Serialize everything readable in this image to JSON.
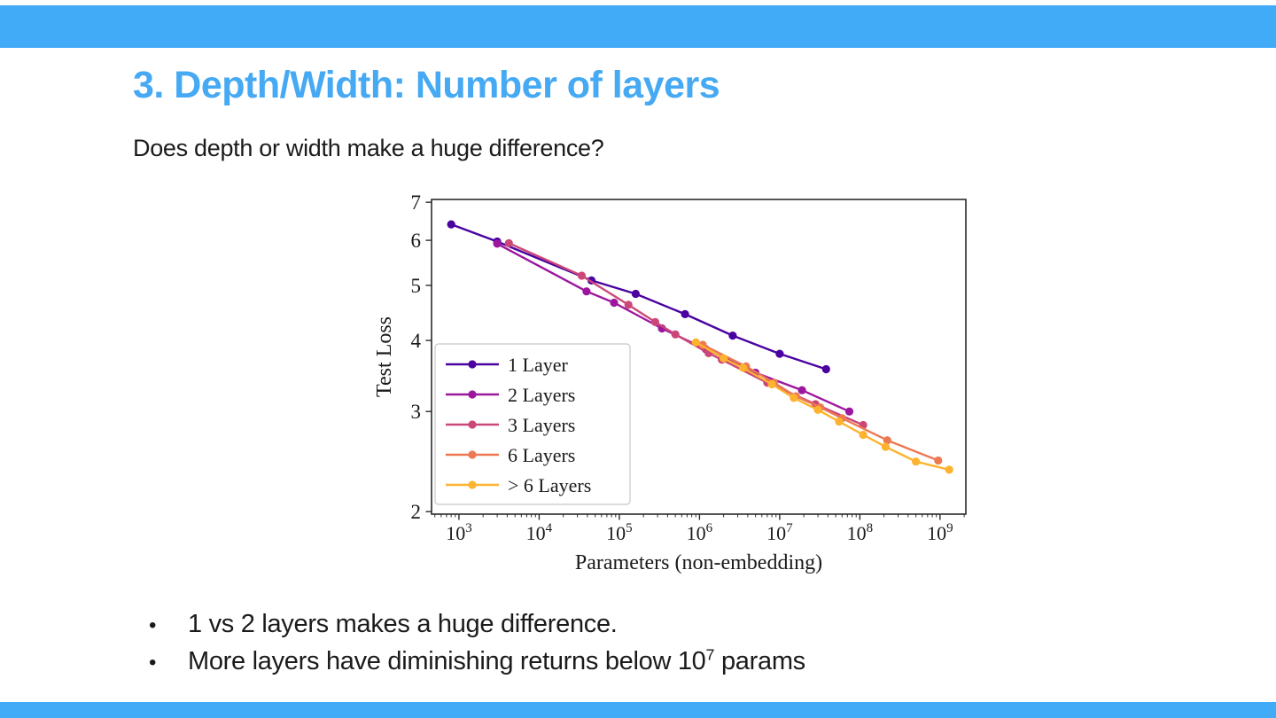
{
  "slide": {
    "accent_color": "#41abf8",
    "title": "3. Depth/Width: Number of layers",
    "title_color": "#45a9f3",
    "subtitle": "Does depth or width make a huge difference?",
    "bullet_glyph": "•",
    "bullets": [
      [
        {
          "t": "1 vs 2 layers makes a huge difference."
        }
      ],
      [
        {
          "t": "More layers have diminishing returns below 10"
        },
        {
          "t": "7",
          "sup": true
        },
        {
          "t": " params"
        }
      ]
    ]
  },
  "chart_data": {
    "type": "line",
    "title": "",
    "xlabel": "Parameters (non-embedding)",
    "ylabel": "Test Loss",
    "x_scale": "log",
    "y_scale": "log",
    "xlim": [
      455,
      2100000000
    ],
    "ylim": [
      1.98,
      7.08
    ],
    "x_tick_exponents": [
      3,
      4,
      5,
      6,
      7,
      8,
      9
    ],
    "y_ticks": [
      2,
      3,
      4,
      5,
      6,
      7
    ],
    "grid": false,
    "legend": {
      "position": "inside-lower-left",
      "entries": [
        "1 Layer",
        "2 Layers",
        "3 Layers",
        "6 Layers",
        "> 6 Layers"
      ]
    },
    "series": [
      {
        "name": "1 Layer",
        "color": "#4a03a0",
        "points": [
          [
            800,
            6.4
          ],
          [
            3000,
            5.97
          ],
          [
            45000,
            5.1
          ],
          [
            160000,
            4.83
          ],
          [
            660000,
            4.45
          ],
          [
            2600000,
            4.08
          ],
          [
            10000000,
            3.79
          ],
          [
            38000000,
            3.56
          ]
        ]
      },
      {
        "name": "2 Layers",
        "color": "#9c179e",
        "points": [
          [
            3000,
            5.92
          ],
          [
            39000,
            4.88
          ],
          [
            86000,
            4.66
          ],
          [
            340000,
            4.2
          ],
          [
            1200000,
            3.86
          ],
          [
            5000000,
            3.51
          ],
          [
            19000000,
            3.27
          ],
          [
            74000000,
            3.0
          ]
        ]
      },
      {
        "name": "3 Layers",
        "color": "#cc4778",
        "points": [
          [
            4200,
            5.93
          ],
          [
            34000,
            5.2
          ],
          [
            130000,
            4.62
          ],
          [
            280000,
            4.31
          ],
          [
            500000,
            4.1
          ],
          [
            1300000,
            3.8
          ],
          [
            1900000,
            3.7
          ],
          [
            7000000,
            3.37
          ],
          [
            28000000,
            3.09
          ],
          [
            110000000,
            2.84
          ]
        ]
      },
      {
        "name": "6 Layers",
        "color": "#ed7953",
        "points": [
          [
            1100000,
            3.93
          ],
          [
            3800000,
            3.6
          ],
          [
            8500000,
            3.37
          ],
          [
            16000000,
            3.19
          ],
          [
            32000000,
            3.05
          ],
          [
            60000000,
            2.92
          ],
          [
            220000000,
            2.67
          ],
          [
            950000000,
            2.46
          ]
        ]
      },
      {
        "name": "> 6 Layers",
        "color": "#fdb32f",
        "points": [
          [
            900000,
            3.97
          ],
          [
            2000000,
            3.72
          ],
          [
            3500000,
            3.58
          ],
          [
            8000000,
            3.35
          ],
          [
            15000000,
            3.17
          ],
          [
            30000000,
            3.02
          ],
          [
            55000000,
            2.88
          ],
          [
            110000000,
            2.73
          ],
          [
            210000000,
            2.6
          ],
          [
            500000000,
            2.45
          ],
          [
            1300000000,
            2.37
          ]
        ]
      }
    ]
  }
}
